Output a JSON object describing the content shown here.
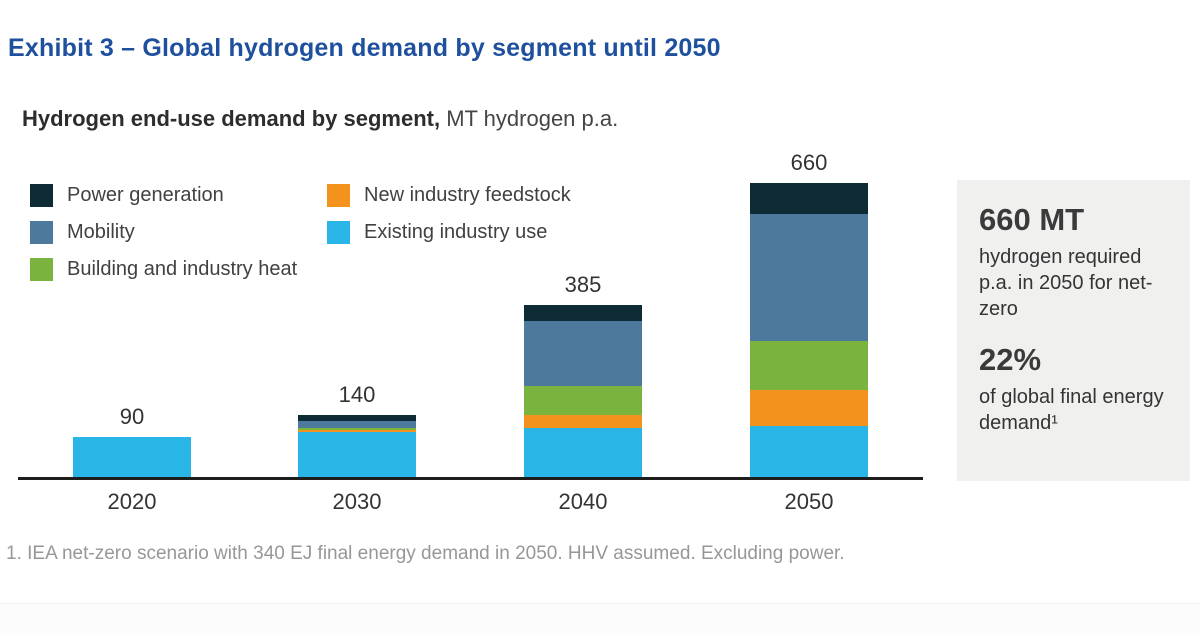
{
  "header": {
    "title": "Exhibit 3 – Global hydrogen demand by segment until 2050",
    "subtitle_strong": "Hydrogen end-use demand by segment,",
    "subtitle_unit": "MT hydrogen p.a."
  },
  "legend": {
    "items": [
      {
        "label": "Power generation",
        "color": "#0e2a34"
      },
      {
        "label": "Mobility",
        "color": "#4d7a9c"
      },
      {
        "label": "Building and industry heat",
        "color": "#7ab43f"
      },
      {
        "label": "New industry feedstock",
        "color": "#f3931d"
      },
      {
        "label": "Existing industry use",
        "color": "#29b6e6"
      }
    ]
  },
  "chart_data": {
    "type": "bar",
    "subtype": "stacked-vertical",
    "title": "Hydrogen end-use demand by segment, MT hydrogen p.a.",
    "categories": [
      "2020",
      "2030",
      "2040",
      "2050"
    ],
    "totals": [
      90,
      140,
      385,
      660
    ],
    "series": [
      {
        "name": "Existing industry use",
        "color": "#29b6e6",
        "values": [
          90,
          100,
          110,
          115
        ]
      },
      {
        "name": "New industry feedstock",
        "color": "#f3931d",
        "values": [
          0,
          5,
          30,
          80
        ]
      },
      {
        "name": "Building and industry heat",
        "color": "#7ab43f",
        "values": [
          0,
          5,
          65,
          110
        ]
      },
      {
        "name": "Mobility",
        "color": "#4d7a9c",
        "values": [
          0,
          15,
          145,
          285
        ]
      },
      {
        "name": "Power generation",
        "color": "#0e2a34",
        "values": [
          0,
          15,
          35,
          70
        ]
      }
    ],
    "stack_order": "bottom-to-top as listed in series",
    "xlabel": "",
    "ylabel": "MT hydrogen p.a.",
    "axis_color": "#1d1d1b",
    "grid": false,
    "legend_position": "top-left, two columns",
    "value_labels": "total above each bar"
  },
  "callout": {
    "stat1_value": "660 MT",
    "stat1_desc": "hydrogen required p.a. in 2050 for net-zero",
    "stat2_value": "22%",
    "stat2_desc": "of global final energy demand¹"
  },
  "footnote": {
    "text": "1. IEA net-zero scenario with 340 EJ final energy demand in 2050. HHV assumed. Excluding power."
  },
  "colors": {
    "title_blue": "#1e509e",
    "callout_bg": "#f0f0ef",
    "text_dark": "#333333",
    "footnote_gray": "#979797"
  }
}
